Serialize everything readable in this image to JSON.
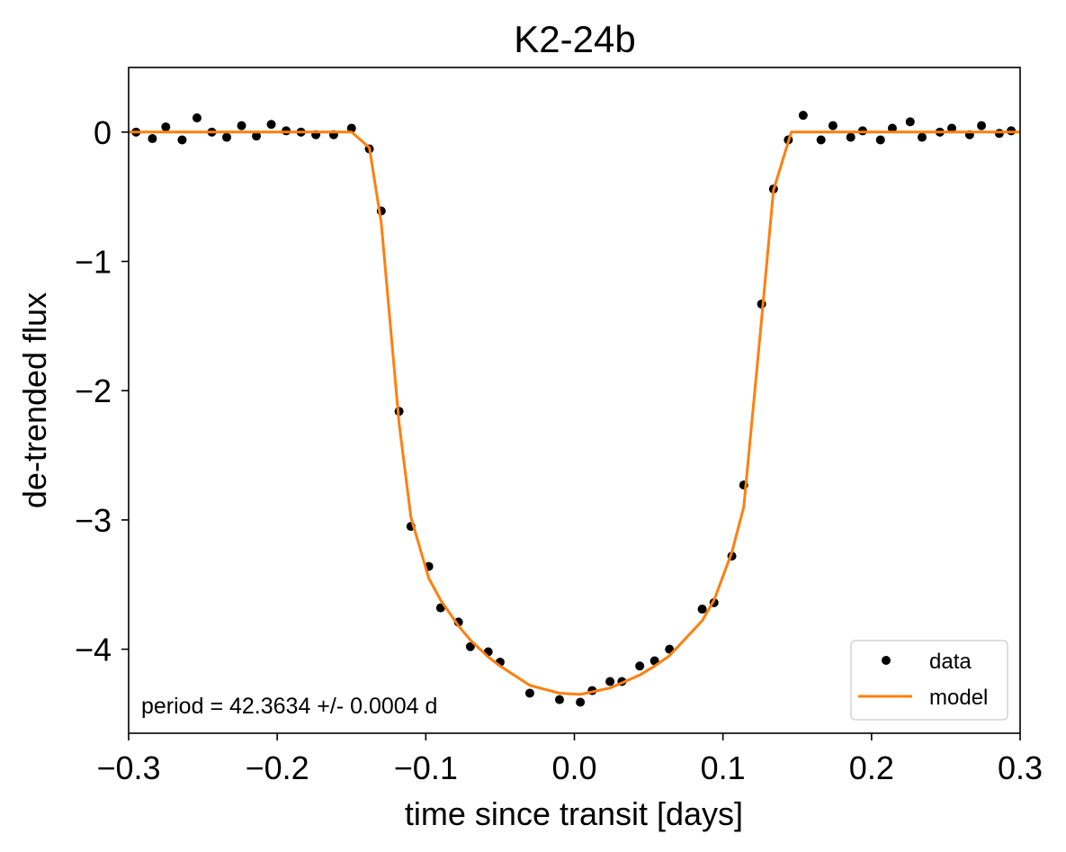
{
  "chart_data": {
    "type": "scatter",
    "title": "K2-24b",
    "xlabel": "time since transit [days]",
    "ylabel": "de-trended flux",
    "xlim": [
      -0.3,
      0.3
    ],
    "ylim": [
      -4.65,
      0.5
    ],
    "xticks": [
      -0.3,
      -0.2,
      -0.1,
      0.0,
      0.1,
      0.2,
      0.3
    ],
    "xtick_labels": [
      "−0.3",
      "−0.2",
      "−0.1",
      "0.0",
      "0.1",
      "0.2",
      "0.3"
    ],
    "yticks": [
      0,
      -1,
      -2,
      -3,
      -4
    ],
    "ytick_labels": [
      "0",
      "−1",
      "−2",
      "−3",
      "−4"
    ],
    "grid": false,
    "legend_position": "lower right",
    "annotation": "period = 42.3634 +/- 0.0004 d",
    "series": [
      {
        "name": "data",
        "kind": "points",
        "color": "#000000",
        "x": [
          -0.295,
          -0.284,
          -0.275,
          -0.264,
          -0.254,
          -0.244,
          -0.234,
          -0.224,
          -0.214,
          -0.204,
          -0.194,
          -0.184,
          -0.174,
          -0.162,
          -0.15,
          -0.138,
          -0.13,
          -0.118,
          -0.11,
          -0.098,
          -0.09,
          -0.078,
          -0.07,
          -0.058,
          -0.05,
          -0.03,
          -0.01,
          0.004,
          0.012,
          0.024,
          0.032,
          0.044,
          0.054,
          0.064,
          0.086,
          0.094,
          0.106,
          0.114,
          0.126,
          0.134,
          0.144,
          0.154,
          0.166,
          0.174,
          0.186,
          0.194,
          0.206,
          0.214,
          0.226,
          0.234,
          0.246,
          0.254,
          0.266,
          0.274,
          0.286,
          0.294
        ],
        "y": [
          0.0,
          -0.05,
          0.04,
          -0.06,
          0.11,
          0.0,
          -0.04,
          0.05,
          -0.03,
          0.06,
          0.01,
          0.0,
          -0.02,
          -0.02,
          0.03,
          -0.13,
          -0.61,
          -2.16,
          -3.05,
          -3.36,
          -3.68,
          -3.79,
          -3.98,
          -4.02,
          -4.1,
          -4.34,
          -4.39,
          -4.41,
          -4.32,
          -4.25,
          -4.25,
          -4.13,
          -4.09,
          -4.0,
          -3.69,
          -3.64,
          -3.28,
          -2.73,
          -1.33,
          -0.44,
          -0.06,
          0.13,
          -0.06,
          0.05,
          -0.04,
          0.01,
          -0.06,
          0.03,
          0.08,
          -0.04,
          0.0,
          0.03,
          -0.02,
          0.05,
          -0.01,
          0.01
        ]
      },
      {
        "name": "model",
        "kind": "line",
        "color": "#ff7f0e",
        "x": [
          -0.3,
          -0.15,
          -0.138,
          -0.13,
          -0.118,
          -0.11,
          -0.098,
          -0.09,
          -0.078,
          -0.07,
          -0.058,
          -0.05,
          -0.03,
          -0.01,
          0.004,
          0.012,
          0.024,
          0.032,
          0.044,
          0.054,
          0.064,
          0.086,
          0.094,
          0.106,
          0.114,
          0.126,
          0.134,
          0.146,
          0.3
        ],
        "y": [
          0.0,
          0.0,
          -0.12,
          -0.7,
          -2.25,
          -2.98,
          -3.45,
          -3.62,
          -3.82,
          -3.93,
          -4.06,
          -4.13,
          -4.28,
          -4.34,
          -4.35,
          -4.33,
          -4.3,
          -4.26,
          -4.2,
          -4.13,
          -4.05,
          -3.78,
          -3.62,
          -3.25,
          -2.9,
          -1.45,
          -0.45,
          0.0,
          0.0
        ]
      }
    ]
  }
}
